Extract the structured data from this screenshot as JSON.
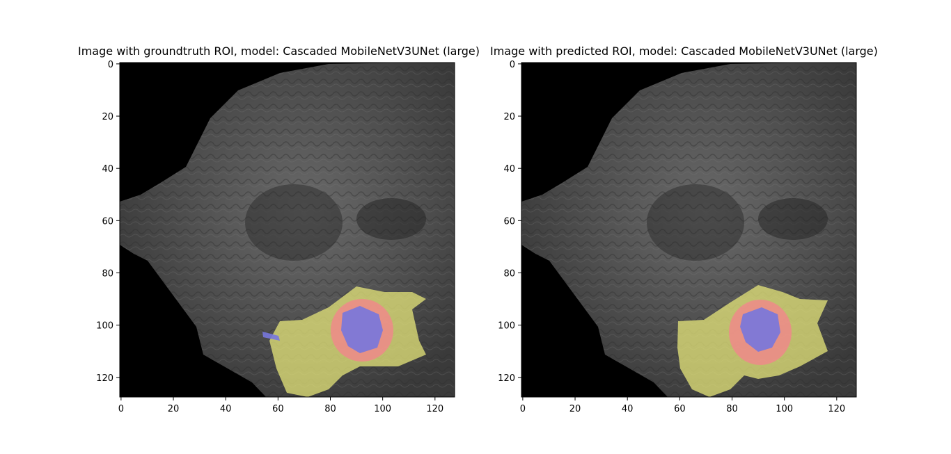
{
  "panels": [
    {
      "title": "Image with groundtruth ROI, model: Cascaded MobileNetV3UNet (large)",
      "kind": "groundtruth",
      "x_ticks": [
        "0",
        "20",
        "40",
        "60",
        "80",
        "100",
        "120"
      ],
      "y_ticks": [
        "0",
        "20",
        "40",
        "60",
        "80",
        "100",
        "120"
      ]
    },
    {
      "title": "Image with predicted ROI, model: Cascaded MobileNetV3UNet (large)",
      "kind": "predicted",
      "x_ticks": [
        "0",
        "20",
        "40",
        "60",
        "80",
        "100",
        "120"
      ],
      "y_ticks": [
        "0",
        "20",
        "40",
        "60",
        "80",
        "100",
        "120"
      ]
    }
  ],
  "image": {
    "size": 128,
    "content": "grayscale brain MRI slice with tumor segmentation overlay"
  },
  "overlay_colors": {
    "edema": "#e6e67a",
    "enhancing": "#ee8a8a",
    "necrotic": "#7777dd"
  }
}
